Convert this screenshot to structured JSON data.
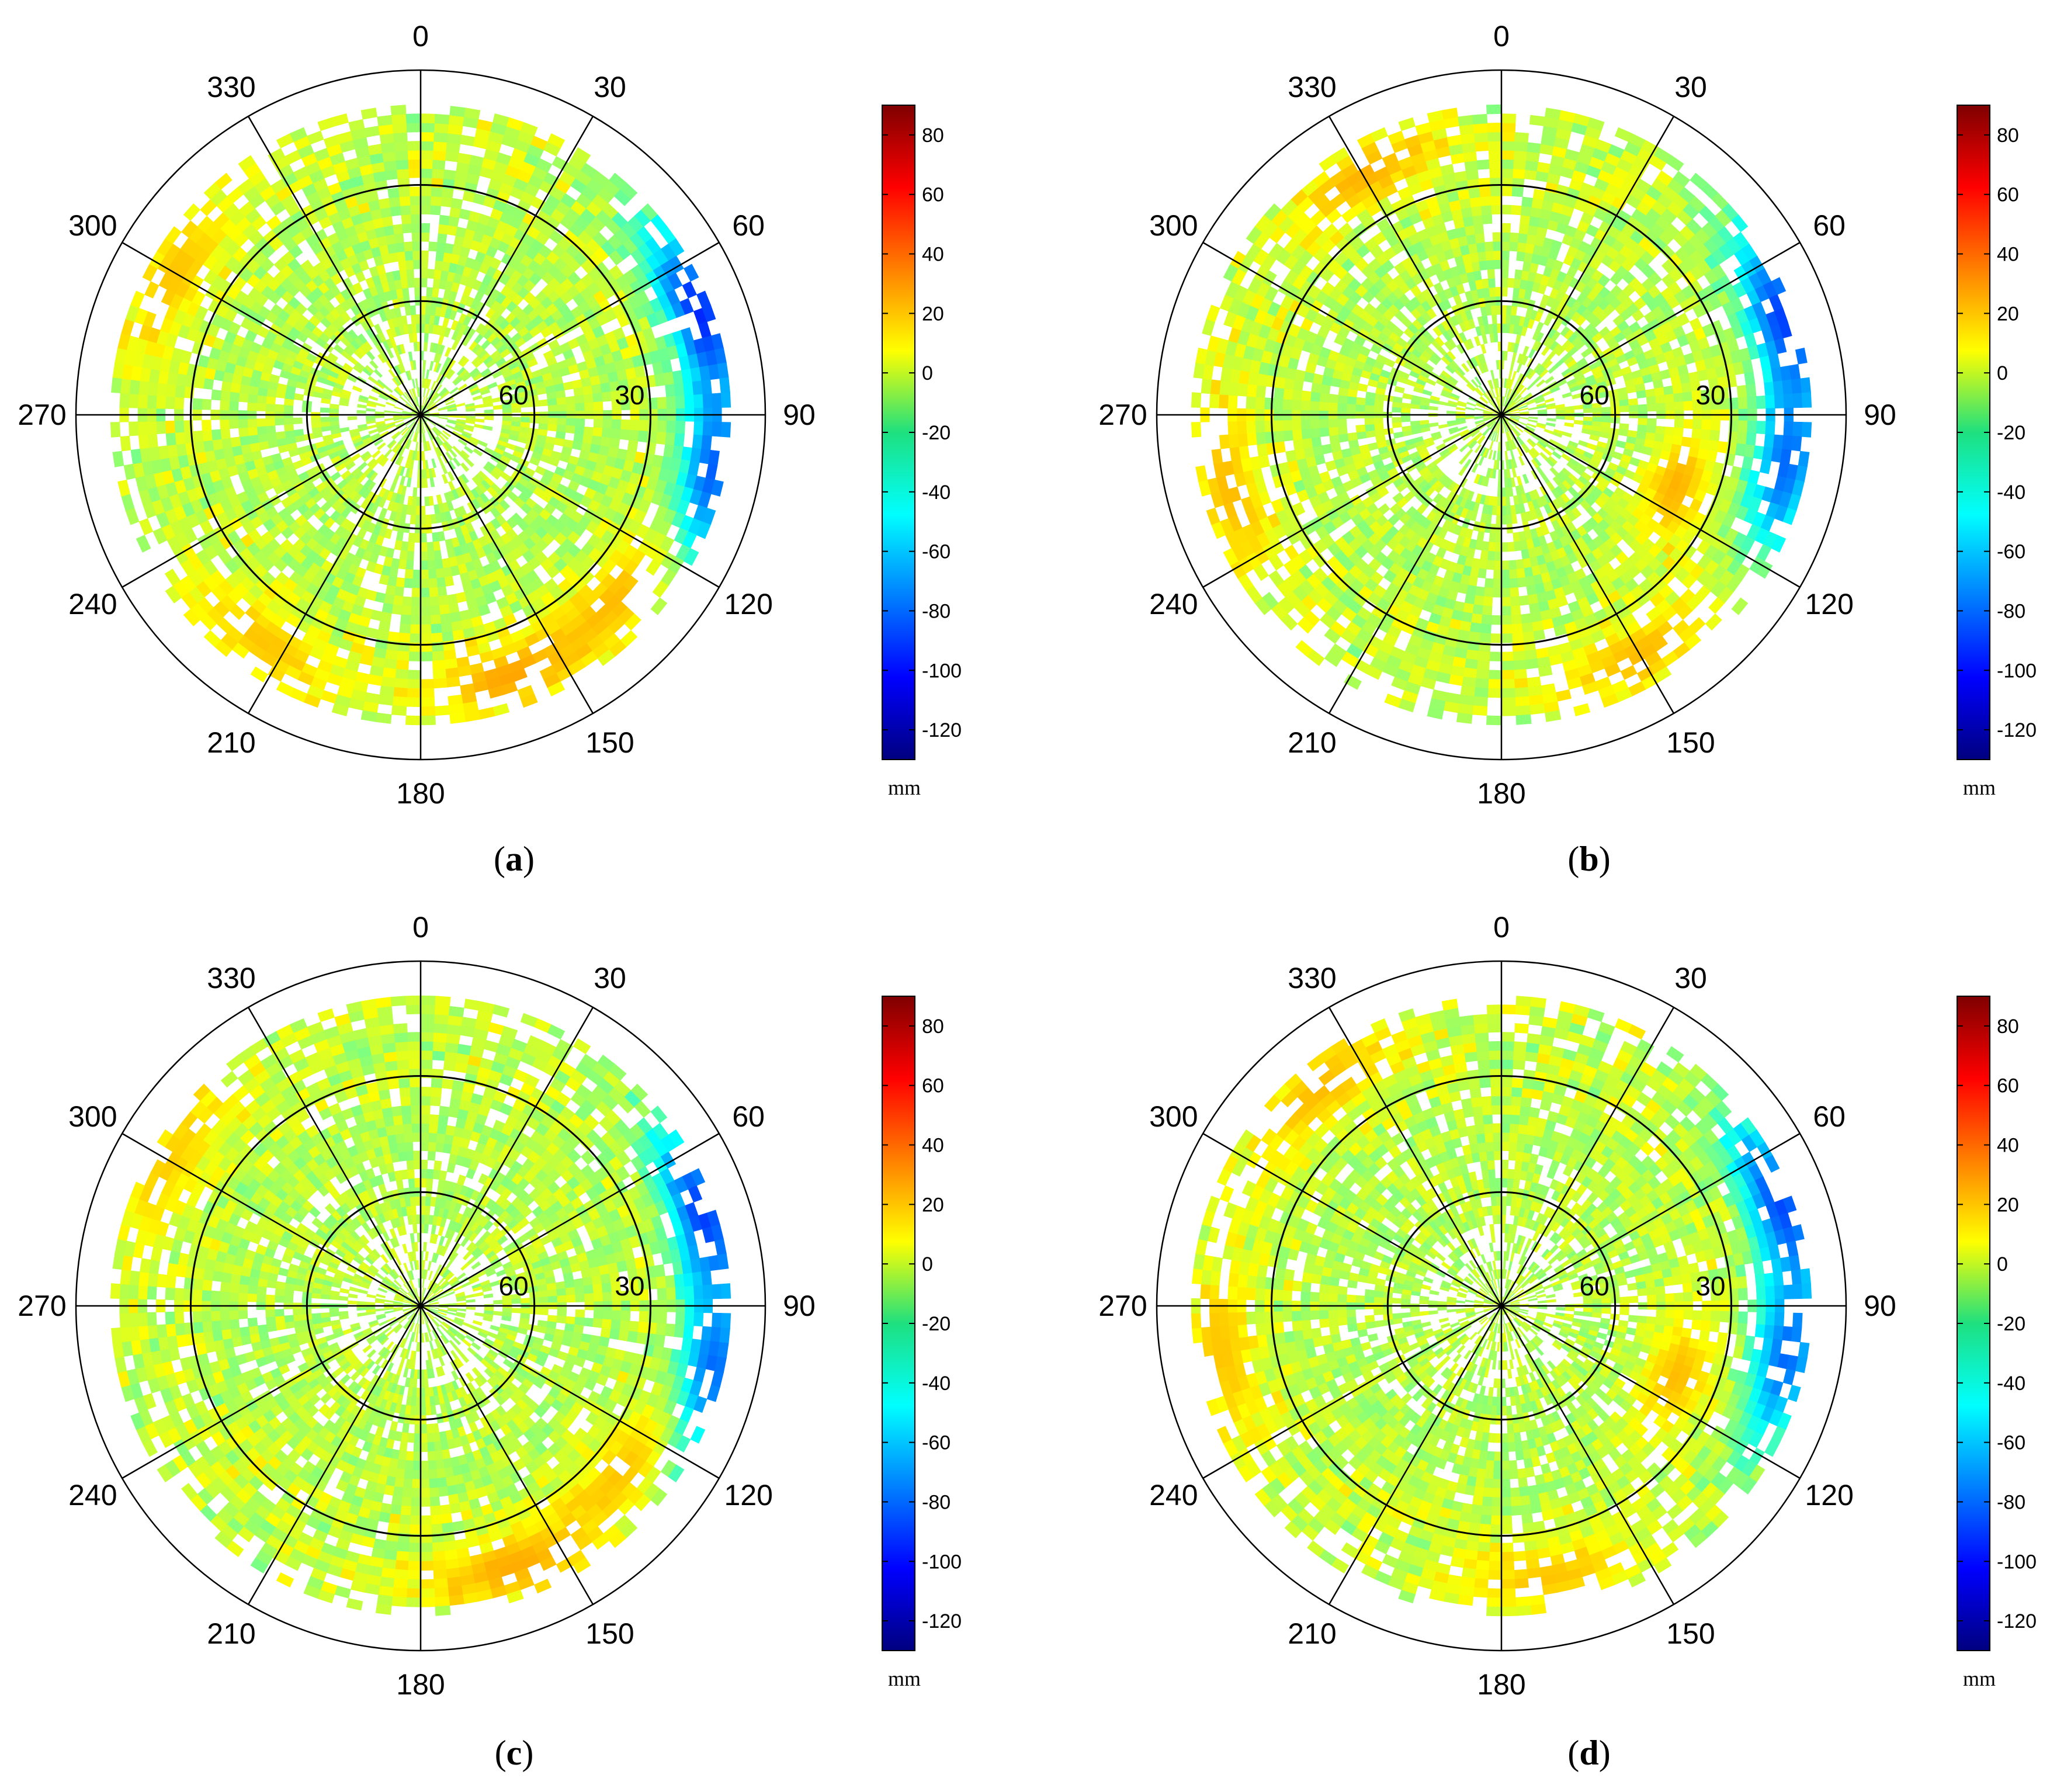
{
  "chart_data": [
    {
      "type": "heatmap",
      "panel": "(a)",
      "panel_letter": "a",
      "projection": "polar",
      "azimuth_ticks": [
        "0",
        "30",
        "60",
        "90",
        "120",
        "150",
        "180",
        "210",
        "240",
        "270",
        "300",
        "330"
      ],
      "radial_tick_labels": [
        "60",
        "30"
      ],
      "colorbar": {
        "range": [
          -130,
          90
        ],
        "ticks": [
          "80",
          "60",
          "40",
          "20",
          "0",
          "-20",
          "-40",
          "-60",
          "-80",
          "-100",
          "-120"
        ],
        "unit": "mm",
        "colormap": "jet"
      },
      "data_extent_outer": 0.9,
      "features": [
        {
          "theta": 70,
          "r": 0.86,
          "value": -95
        },
        {
          "theta": 102,
          "r": 0.86,
          "value": -85
        },
        {
          "theta": 160,
          "r": 0.8,
          "value": 28
        },
        {
          "theta": 135,
          "r": 0.78,
          "value": 22
        },
        {
          "theta": 215,
          "r": 0.8,
          "value": 20
        },
        {
          "theta": 300,
          "r": 0.82,
          "value": 20
        }
      ]
    },
    {
      "type": "heatmap",
      "panel": "(b)",
      "panel_letter": "b",
      "projection": "polar",
      "azimuth_ticks": [
        "0",
        "30",
        "60",
        "90",
        "120",
        "150",
        "180",
        "210",
        "240",
        "270",
        "300",
        "330"
      ],
      "radial_tick_labels": [
        "60",
        "30"
      ],
      "colorbar": {
        "range": [
          -130,
          90
        ],
        "ticks": [
          "80",
          "60",
          "40",
          "20",
          "0",
          "-20",
          "-40",
          "-60",
          "-80",
          "-100",
          "-120"
        ],
        "unit": "mm",
        "colormap": "jet"
      },
      "data_extent_outer": 0.9,
      "features": [
        {
          "theta": 72,
          "r": 0.86,
          "value": -90
        },
        {
          "theta": 100,
          "r": 0.84,
          "value": -80
        },
        {
          "theta": 112,
          "r": 0.55,
          "value": 24
        },
        {
          "theta": 255,
          "r": 0.82,
          "value": 22
        },
        {
          "theta": 330,
          "r": 0.8,
          "value": 24
        },
        {
          "theta": 150,
          "r": 0.8,
          "value": 22
        }
      ]
    },
    {
      "type": "heatmap",
      "panel": "(c)",
      "panel_letter": "c",
      "projection": "polar",
      "azimuth_ticks": [
        "0",
        "30",
        "60",
        "90",
        "120",
        "150",
        "180",
        "210",
        "240",
        "270",
        "300",
        "330"
      ],
      "radial_tick_labels": [
        "60",
        "30"
      ],
      "colorbar": {
        "range": [
          -130,
          90
        ],
        "ticks": [
          "80",
          "60",
          "40",
          "20",
          "0",
          "-20",
          "-40",
          "-60",
          "-80",
          "-100",
          "-120"
        ],
        "unit": "mm",
        "colormap": "jet"
      },
      "data_extent_outer": 0.9,
      "features": [
        {
          "theta": 72,
          "r": 0.86,
          "value": -90
        },
        {
          "theta": 104,
          "r": 0.86,
          "value": -85
        },
        {
          "theta": 160,
          "r": 0.8,
          "value": 26
        },
        {
          "theta": 130,
          "r": 0.76,
          "value": 20
        },
        {
          "theta": 300,
          "r": 0.84,
          "value": 18
        }
      ]
    },
    {
      "type": "heatmap",
      "panel": "(d)",
      "panel_letter": "d",
      "projection": "polar",
      "azimuth_ticks": [
        "0",
        "30",
        "60",
        "90",
        "120",
        "150",
        "180",
        "210",
        "240",
        "270",
        "300",
        "330"
      ],
      "radial_tick_labels": [
        "60",
        "30"
      ],
      "colorbar": {
        "range": [
          -130,
          90
        ],
        "ticks": [
          "80",
          "60",
          "40",
          "20",
          "0",
          "-20",
          "-40",
          "-60",
          "-80",
          "-100",
          "-120"
        ],
        "unit": "mm",
        "colormap": "jet"
      },
      "data_extent_outer": 0.9,
      "features": [
        {
          "theta": 70,
          "r": 0.86,
          "value": -88
        },
        {
          "theta": 100,
          "r": 0.84,
          "value": -80
        },
        {
          "theta": 112,
          "r": 0.55,
          "value": 22
        },
        {
          "theta": 260,
          "r": 0.82,
          "value": 20
        },
        {
          "theta": 320,
          "r": 0.82,
          "value": 22
        },
        {
          "theta": 170,
          "r": 0.8,
          "value": 20
        }
      ]
    }
  ]
}
